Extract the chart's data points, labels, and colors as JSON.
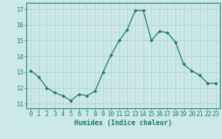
{
  "x": [
    0,
    1,
    2,
    3,
    4,
    5,
    6,
    7,
    8,
    9,
    10,
    11,
    12,
    13,
    14,
    15,
    16,
    17,
    18,
    19,
    20,
    21,
    22,
    23
  ],
  "y": [
    13.1,
    12.7,
    12.0,
    11.7,
    11.5,
    11.2,
    11.6,
    11.5,
    11.8,
    13.0,
    14.1,
    15.0,
    15.7,
    16.9,
    16.9,
    15.0,
    15.6,
    15.5,
    14.9,
    13.5,
    13.1,
    12.8,
    12.3,
    12.3
  ],
  "line_color": "#1a7a6e",
  "marker": "D",
  "markersize": 2.2,
  "linewidth": 1.0,
  "bg_color": "#cce8e8",
  "grid_color_major": "#aacccc",
  "grid_color_minor": "#bbdada",
  "xlabel": "Humidex (Indice chaleur)",
  "xlabel_fontsize": 7,
  "ylabel_ticks": [
    11,
    12,
    13,
    14,
    15,
    16,
    17
  ],
  "xlim": [
    -0.5,
    23.5
  ],
  "ylim": [
    10.7,
    17.4
  ],
  "xtick_labels": [
    "0",
    "1",
    "2",
    "3",
    "4",
    "5",
    "6",
    "7",
    "8",
    "9",
    "10",
    "11",
    "12",
    "13",
    "14",
    "15",
    "16",
    "17",
    "18",
    "19",
    "20",
    "21",
    "22",
    "23"
  ],
  "tick_fontsize": 6.5,
  "tick_color": "#1a7a6e",
  "spine_color": "#1a7a6e"
}
